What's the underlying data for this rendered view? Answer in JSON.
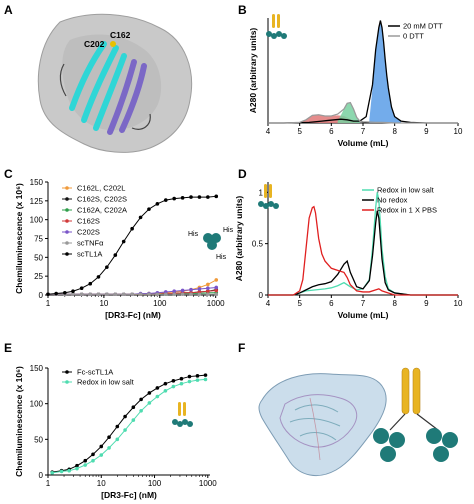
{
  "panels": {
    "A": {
      "label": "A",
      "residue_labels": [
        "C202",
        "C162"
      ],
      "colors": {
        "surface": "#bdbdbd",
        "strand_a": "#2fd6d6",
        "strand_b": "#7b68c6"
      }
    },
    "F": {
      "label": "F",
      "colors": {
        "density": "#a9c7de",
        "domain": "#1f7a78",
        "stalk": "#e8b422"
      }
    }
  },
  "chart_data": [
    {
      "id": "B",
      "label": "B",
      "type": "line",
      "xlabel": "Volume (mL)",
      "ylabel": "A280 (arbitrary units)",
      "xlim": [
        4,
        10
      ],
      "xticks": [
        4,
        5,
        6,
        7,
        8,
        9,
        10
      ],
      "ylim": [
        0,
        330
      ],
      "yticks": [],
      "legend_position": "top-right",
      "series": [
        {
          "name": "20 mM DTT",
          "color": "#000000",
          "x": [
            4.0,
            4.5,
            5.0,
            5.3,
            5.5,
            5.7,
            5.9,
            6.1,
            6.3,
            6.5,
            6.7,
            6.9,
            7.1,
            7.3,
            7.4,
            7.5,
            7.55,
            7.6,
            7.65,
            7.7,
            7.75,
            7.8,
            7.85,
            7.9,
            8.0,
            8.2,
            8.5,
            9.0,
            10.0
          ],
          "y": [
            0,
            0,
            1,
            2,
            4,
            6,
            8,
            10,
            12,
            10,
            6,
            6,
            20,
            120,
            230,
            300,
            322,
            300,
            255,
            200,
            150,
            110,
            80,
            50,
            20,
            6,
            2,
            0,
            0
          ]
        },
        {
          "name": "0 DTT",
          "color": "#9a9a9a",
          "x": [
            4.0,
            4.5,
            5.0,
            5.2,
            5.4,
            5.6,
            5.8,
            6.0,
            6.2,
            6.4,
            6.5,
            6.6,
            6.7,
            6.8,
            6.9,
            7.0,
            7.2,
            7.4,
            7.6,
            7.8,
            8.0,
            8.5,
            10.0
          ],
          "y": [
            0,
            0,
            2,
            10,
            24,
            26,
            22,
            22,
            28,
            44,
            62,
            64,
            44,
            18,
            6,
            4,
            3,
            2,
            2,
            1,
            0,
            0,
            0
          ]
        }
      ],
      "fills": [
        {
          "color": "#e07878",
          "x": [
            5.0,
            5.2,
            5.4,
            5.6,
            5.8,
            6.0,
            6.2,
            6.4,
            6.6,
            6.8
          ],
          "y": [
            2,
            10,
            24,
            26,
            22,
            22,
            24,
            22,
            12,
            4
          ]
        },
        {
          "color": "#78d0a0",
          "x": [
            6.2,
            6.3,
            6.4,
            6.5,
            6.6,
            6.7,
            6.8,
            6.9
          ],
          "y": [
            6,
            24,
            44,
            62,
            64,
            44,
            18,
            6
          ]
        },
        {
          "color": "#5b9ee8",
          "x": [
            7.2,
            7.3,
            7.4,
            7.5,
            7.55,
            7.6,
            7.65,
            7.7,
            7.75,
            7.8,
            7.85,
            7.9,
            8.0,
            8.2
          ],
          "y": [
            10,
            110,
            225,
            298,
            320,
            300,
            255,
            200,
            150,
            110,
            80,
            50,
            20,
            6
          ]
        }
      ]
    },
    {
      "id": "C",
      "label": "C",
      "type": "scatter",
      "xlabel": "[DR3-Fc] (nM)",
      "ylabel": "Chemiluminescence (x 10⁶)",
      "xscale": "log",
      "xlim": [
        1,
        1100
      ],
      "xticks": [
        1,
        10,
        100,
        1000
      ],
      "ylim": [
        0,
        150
      ],
      "yticks": [
        0,
        25,
        50,
        75,
        100,
        125,
        150
      ],
      "legend_position": "top-left",
      "annotation": {
        "text": "His",
        "labels": [
          "His",
          "His",
          "His"
        ]
      },
      "x": [
        1.0,
        1.4,
        2.0,
        2.8,
        4.0,
        5.7,
        8.0,
        11.3,
        16.0,
        22.6,
        32.0,
        45.3,
        64.0,
        90.5,
        128.0,
        181.0,
        256.0,
        362.0,
        512.0,
        724.0,
        1024.0
      ],
      "series": [
        {
          "name": "C162L, C202L",
          "color": "#f09a3a",
          "values": [
            1,
            1,
            1,
            1,
            1,
            1,
            1,
            1,
            1,
            1,
            1,
            1,
            2,
            2,
            3,
            4,
            5,
            7,
            10,
            14,
            20
          ]
        },
        {
          "name": "C162S, C202S",
          "color": "#111111",
          "values": [
            1,
            1,
            1,
            1,
            1,
            1,
            1,
            1,
            1,
            1,
            1,
            1,
            1,
            1,
            2,
            2,
            3,
            3,
            4,
            5,
            7
          ]
        },
        {
          "name": "C162A, C202A",
          "color": "#2e9e4a",
          "values": [
            1,
            1,
            1,
            1,
            1,
            1,
            1,
            1,
            1,
            1,
            1,
            1,
            1,
            1,
            1,
            2,
            2,
            2,
            2,
            3,
            3
          ]
        },
        {
          "name": "C162S",
          "color": "#d03a3a",
          "values": [
            1,
            1,
            1,
            1,
            1,
            1,
            1,
            1,
            1,
            1,
            1,
            1,
            1,
            1,
            2,
            2,
            3,
            3,
            4,
            5,
            6
          ]
        },
        {
          "name": "C202S",
          "color": "#7a55c8",
          "values": [
            1,
            1,
            1,
            1,
            1,
            1,
            1,
            1,
            1,
            1,
            1,
            2,
            2,
            3,
            4,
            5,
            6,
            7,
            8,
            9,
            10
          ]
        },
        {
          "name": "scTNFα",
          "color": "#999999",
          "values": [
            1,
            1,
            1,
            1,
            1,
            1,
            1,
            1,
            1,
            1,
            1,
            1,
            1,
            1,
            1,
            1,
            1,
            1,
            1,
            1,
            1
          ]
        },
        {
          "name": "scTL1A",
          "color": "#000000",
          "values": [
            1,
            2,
            3,
            5,
            9,
            15,
            24,
            37,
            53,
            71,
            88,
            103,
            114,
            121,
            126,
            128,
            129,
            130,
            130,
            130,
            131
          ]
        }
      ]
    },
    {
      "id": "D",
      "label": "D",
      "type": "line",
      "xlabel": "Volume (mL)",
      "ylabel": "A280 (arbitrary units)",
      "xlim": [
        4,
        10
      ],
      "xticks": [
        4,
        5,
        6,
        7,
        8,
        9,
        10
      ],
      "ylim": [
        0,
        1.1
      ],
      "yticks": [
        0,
        0.5,
        1
      ],
      "ytick_labels": [
        "0",
        "0.5",
        "1"
      ],
      "legend_position": "top-right",
      "series": [
        {
          "name": "Redox in low salt",
          "color": "#4fdcb0",
          "x": [
            4.0,
            4.8,
            5.0,
            5.2,
            5.5,
            5.8,
            6.0,
            6.2,
            6.4,
            6.6,
            6.8,
            7.0,
            7.2,
            7.3,
            7.4,
            7.45,
            7.5,
            7.55,
            7.6,
            7.7,
            7.8,
            8.0,
            8.5,
            10.0
          ],
          "y": [
            0,
            0,
            0.02,
            0.04,
            0.05,
            0.06,
            0.07,
            0.09,
            0.12,
            0.08,
            0.05,
            0.06,
            0.15,
            0.45,
            0.85,
            1.0,
            0.92,
            0.7,
            0.45,
            0.18,
            0.06,
            0.02,
            0,
            0
          ]
        },
        {
          "name": "No redox",
          "color": "#000000",
          "x": [
            4.0,
            4.8,
            5.0,
            5.2,
            5.4,
            5.6,
            5.8,
            6.0,
            6.2,
            6.4,
            6.5,
            6.6,
            6.8,
            7.0,
            7.2,
            7.3,
            7.4,
            7.45,
            7.5,
            7.55,
            7.6,
            7.7,
            7.8,
            8.0,
            8.5,
            10.0
          ],
          "y": [
            0,
            0,
            0.02,
            0.05,
            0.08,
            0.1,
            0.11,
            0.13,
            0.2,
            0.3,
            0.33,
            0.22,
            0.08,
            0.06,
            0.14,
            0.38,
            0.7,
            0.82,
            0.75,
            0.55,
            0.35,
            0.12,
            0.05,
            0.02,
            0,
            0
          ]
        },
        {
          "name": "Redox in 1 X PBS",
          "color": "#e02020",
          "x": [
            4.0,
            4.8,
            5.0,
            5.1,
            5.2,
            5.3,
            5.4,
            5.45,
            5.5,
            5.6,
            5.7,
            5.8,
            6.0,
            6.2,
            6.4,
            6.5,
            6.6,
            6.8,
            7.0,
            7.2,
            7.4,
            7.5,
            7.6,
            7.8,
            8.0,
            10.0
          ],
          "y": [
            0,
            0,
            0.04,
            0.15,
            0.45,
            0.75,
            0.85,
            0.86,
            0.8,
            0.55,
            0.4,
            0.33,
            0.26,
            0.24,
            0.22,
            0.17,
            0.1,
            0.04,
            0.03,
            0.03,
            0.05,
            0.06,
            0.04,
            0.02,
            0,
            0
          ]
        }
      ]
    },
    {
      "id": "E",
      "label": "E",
      "type": "scatter",
      "xlabel": "[DR3-Fc] (nM)",
      "ylabel": "Chemiluminescence (x 10⁶)",
      "xscale": "log",
      "xlim": [
        1,
        1100
      ],
      "xticks": [
        1,
        10,
        100,
        1000
      ],
      "ylim": [
        0,
        150
      ],
      "yticks": [
        0,
        50,
        100,
        150
      ],
      "legend_position": "top-left",
      "x": [
        1.2,
        1.8,
        2.5,
        3.5,
        5.0,
        7.0,
        10.0,
        14.0,
        20.0,
        28.0,
        40.0,
        56.0,
        80.0,
        113.0,
        160.0,
        226.0,
        320.0,
        453.0,
        640.0,
        905.0
      ],
      "series": [
        {
          "name": "Fc-scTL1A",
          "color": "#000000",
          "values": [
            4,
            6,
            8,
            13,
            20,
            29,
            40,
            53,
            68,
            82,
            95,
            106,
            115,
            122,
            128,
            132,
            135,
            138,
            139,
            140
          ]
        },
        {
          "name": "Redox in low salt",
          "color": "#4fdcb0",
          "values": [
            3,
            5,
            6,
            9,
            14,
            20,
            28,
            38,
            50,
            63,
            77,
            90,
            101,
            110,
            118,
            124,
            128,
            131,
            133,
            134
          ]
        }
      ]
    }
  ]
}
